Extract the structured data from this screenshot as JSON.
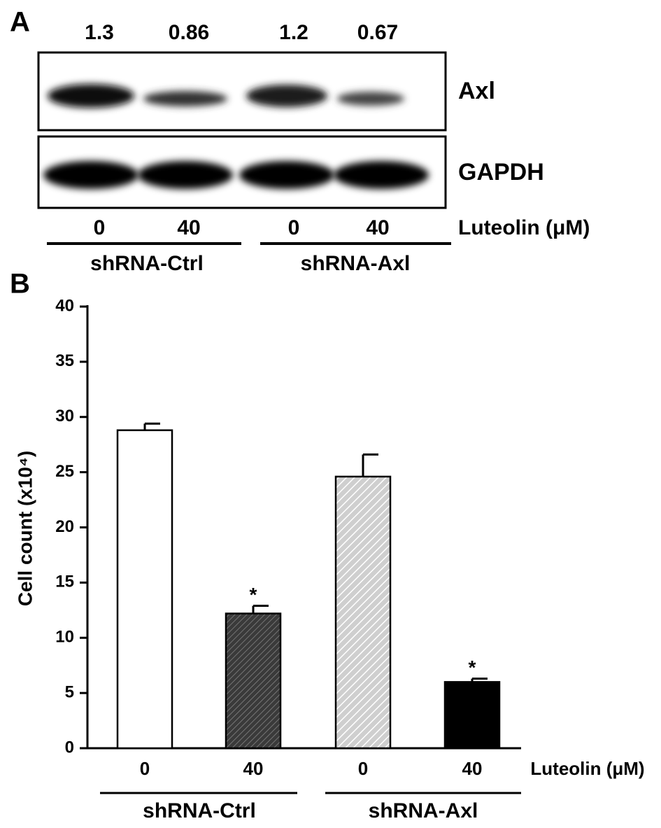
{
  "blot": {
    "label": "A",
    "ratios": [
      1.3,
      0.86,
      1.2,
      0.67
    ],
    "rows": [
      "Axl",
      "GAPDH"
    ],
    "doses": [
      "0",
      "40",
      "0",
      "40"
    ],
    "treatment": "Luteolin (μM)",
    "groups": [
      "shRNA-Ctrl",
      "shRNA-Axl"
    ]
  },
  "chart_data": {
    "type": "bar",
    "panel_label": "B",
    "y_label": "Cell count  (x10⁴)",
    "categories": [
      "0",
      "40",
      "0",
      "40"
    ],
    "values": [
      28.8,
      12.2,
      24.6,
      6.0
    ],
    "errors": [
      0.6,
      0.7,
      2.0,
      0.3
    ],
    "colors": [
      "#ffffff",
      "#3a3a3a",
      "#d6d6d6",
      "#000000"
    ],
    "hatch": [
      false,
      true,
      true,
      false
    ],
    "annotations": [
      "",
      "*",
      "",
      "*"
    ],
    "x_label": "Luteolin (μM)",
    "groups": [
      "shRNA-Ctrl",
      "shRNA-Axl"
    ],
    "ylim": [
      0,
      40
    ],
    "yticks": [
      0,
      5,
      10,
      15,
      20,
      25,
      30,
      35,
      40
    ]
  }
}
